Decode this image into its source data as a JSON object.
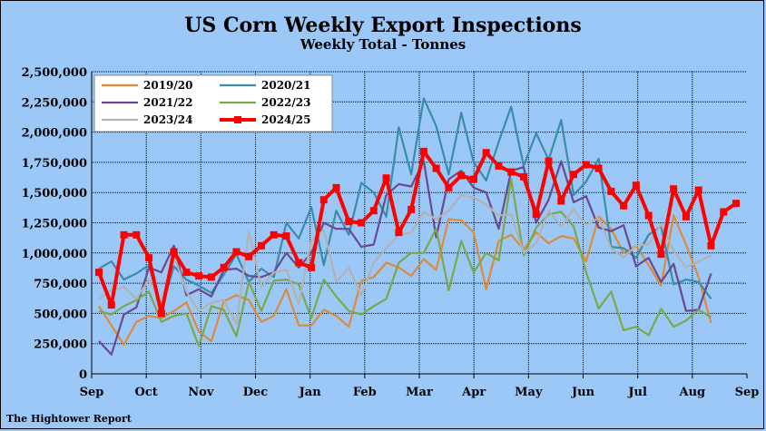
{
  "chart_data": {
    "type": "line",
    "title": "US Corn Weekly Export Inspections",
    "subtitle": "Weekly Total - Tonnes",
    "footer": "The Hightower Report",
    "x_ticks": [
      "Sep",
      "Oct",
      "Nov",
      "Dec",
      "Jan",
      "Feb",
      "Mar",
      "Apr",
      "May",
      "Jun",
      "Jul",
      "Aug",
      "Sep"
    ],
    "y_ticks": [
      "2,500,000",
      "2,250,000",
      "2,000,000",
      "1,750,000",
      "1,500,000",
      "1,250,000",
      "1,000,000",
      "750,000",
      "500,000",
      "250,000",
      "0"
    ],
    "ylim": [
      0,
      2500000
    ],
    "grid": true,
    "legend_position": "top-left",
    "series": [
      {
        "name": "2019/20",
        "color": "#dd8a3a",
        "width": 2.2,
        "markers": false,
        "values": [
          560000,
          400000,
          240000,
          430000,
          480000,
          460000,
          520000,
          590000,
          350000,
          270000,
          600000,
          650000,
          610000,
          430000,
          480000,
          700000,
          400000,
          400000,
          530000,
          480000,
          390000,
          770000,
          800000,
          920000,
          880000,
          810000,
          950000,
          860000,
          1280000,
          1270000,
          1170000,
          700000,
          1100000,
          1150000,
          1030000,
          1170000,
          1080000,
          1140000,
          1120000,
          930000,
          1300000,
          1200000,
          1000000,
          1060000,
          900000,
          730000,
          1310000,
          1070000,
          800000,
          420000
        ]
      },
      {
        "name": "2020/21",
        "color": "#3a8ca8",
        "width": 2.2,
        "markers": false,
        "values": [
          870000,
          930000,
          780000,
          830000,
          900000,
          530000,
          890000,
          780000,
          730000,
          670000,
          820000,
          990000,
          760000,
          870000,
          800000,
          1250000,
          1120000,
          1380000,
          900000,
          1350000,
          1150000,
          1580000,
          1500000,
          1300000,
          2040000,
          1650000,
          2280000,
          2050000,
          1650000,
          2160000,
          1750000,
          1600000,
          1920000,
          2210000,
          1720000,
          1990000,
          1770000,
          2100000,
          1480000,
          1590000,
          1780000,
          1050000,
          1040000,
          960000,
          1150000,
          1220000,
          740000,
          780000,
          760000,
          620000
        ]
      },
      {
        "name": "2021/22",
        "color": "#6a4a8c",
        "width": 2.2,
        "markers": false,
        "values": [
          270000,
          160000,
          490000,
          550000,
          880000,
          840000,
          1060000,
          650000,
          700000,
          640000,
          860000,
          870000,
          810000,
          800000,
          840000,
          1000000,
          880000,
          1000000,
          1250000,
          1200000,
          1200000,
          1050000,
          1070000,
          1480000,
          1570000,
          1550000,
          1760000,
          1130000,
          1610000,
          1680000,
          1540000,
          1500000,
          1200000,
          1680000,
          1710000,
          1250000,
          1440000,
          1760000,
          1420000,
          1470000,
          1210000,
          1180000,
          1230000,
          890000,
          960000,
          760000,
          910000,
          520000,
          530000,
          830000
        ]
      },
      {
        "name": "2022/23",
        "color": "#7aa84a",
        "width": 2.2,
        "markers": false,
        "values": [
          520000,
          490000,
          560000,
          610000,
          680000,
          430000,
          480000,
          500000,
          230000,
          560000,
          530000,
          310000,
          760000,
          520000,
          770000,
          780000,
          740000,
          460000,
          780000,
          640000,
          520000,
          490000,
          560000,
          620000,
          920000,
          1000000,
          1000000,
          1200000,
          690000,
          1100000,
          840000,
          1000000,
          940000,
          1610000,
          980000,
          1210000,
          1320000,
          1340000,
          1220000,
          840000,
          540000,
          680000,
          360000,
          390000,
          320000,
          540000,
          390000,
          440000,
          530000,
          470000
        ]
      },
      {
        "name": "2023/24",
        "color": "#b2b2b2",
        "width": 2.2,
        "markers": false,
        "values": [
          620000,
          690000,
          720000,
          620000,
          780000,
          590000,
          980000,
          680000,
          520000,
          590000,
          610000,
          410000,
          1180000,
          720000,
          840000,
          860000,
          580000,
          1100000,
          1190000,
          760000,
          880000,
          650000,
          920000,
          1040000,
          1150000,
          1170000,
          1340000,
          1280000,
          1350000,
          1480000,
          1460000,
          1400000,
          1310000,
          1320000,
          1000000,
          1080000,
          1350000,
          1220000,
          1360000,
          1230000,
          1290000,
          1040000,
          960000,
          1060000,
          1070000,
          1240000,
          1020000,
          880000,
          930000,
          980000
        ]
      },
      {
        "name": "2024/25",
        "color": "#ff0000",
        "width": 4,
        "markers": true,
        "values": [
          840000,
          570000,
          1150000,
          1150000,
          960000,
          500000,
          1010000,
          840000,
          810000,
          800000,
          880000,
          1010000,
          970000,
          1060000,
          1150000,
          1140000,
          920000,
          880000,
          1440000,
          1540000,
          1260000,
          1250000,
          1350000,
          1620000,
          1170000,
          1360000,
          1840000,
          1700000,
          1540000,
          1640000,
          1610000,
          1830000,
          1720000,
          1670000,
          1630000,
          1320000,
          1760000,
          1430000,
          1650000,
          1730000,
          1700000,
          1510000,
          1390000,
          1560000,
          1310000,
          990000,
          1530000,
          1300000,
          1520000,
          1060000,
          1340000,
          1410000
        ]
      }
    ]
  }
}
